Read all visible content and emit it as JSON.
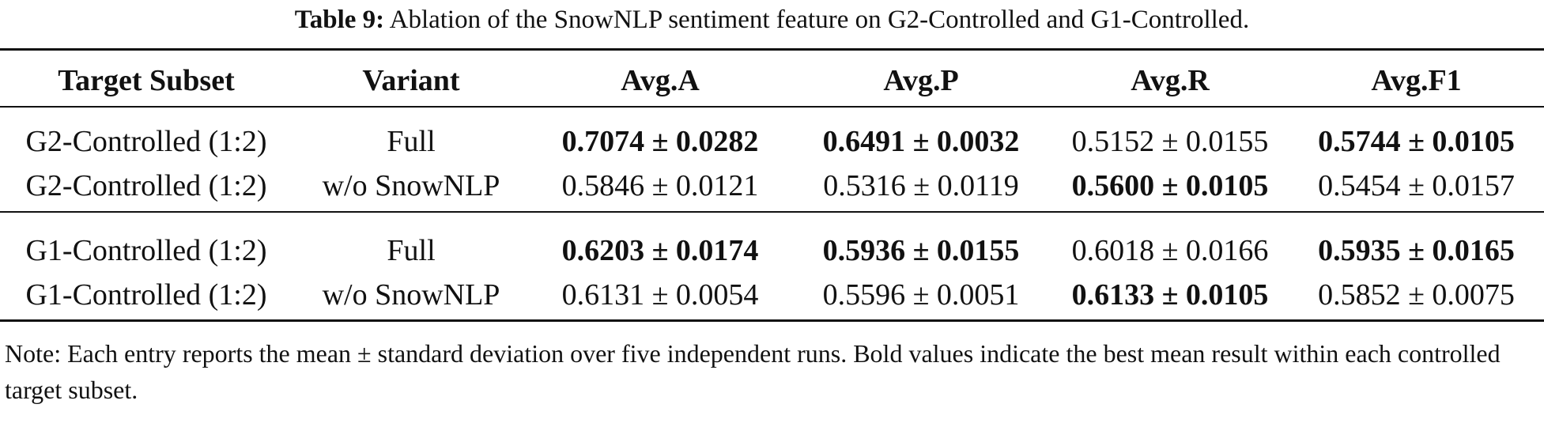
{
  "caption": {
    "label": "Table 9:",
    "text": "Ablation of the SnowNLP sentiment feature on G2-Controlled and G1-Controlled."
  },
  "table": {
    "headers": [
      "Target Subset",
      "Variant",
      "Avg.A",
      "Avg.P",
      "Avg.R",
      "Avg.F1"
    ],
    "groups": [
      {
        "rows": [
          {
            "cells": [
              "G2-Controlled (1:2)",
              "Full",
              "0.7074 ± 0.0282",
              "0.6491 ± 0.0032",
              "0.5152 ± 0.0155",
              "0.5744 ± 0.0105"
            ],
            "bold": [
              false,
              false,
              true,
              true,
              false,
              true
            ]
          },
          {
            "cells": [
              "G2-Controlled (1:2)",
              "w/o SnowNLP",
              "0.5846 ± 0.0121",
              "0.5316 ± 0.0119",
              "0.5600 ± 0.0105",
              "0.5454 ± 0.0157"
            ],
            "bold": [
              false,
              false,
              false,
              false,
              true,
              false
            ]
          }
        ]
      },
      {
        "rows": [
          {
            "cells": [
              "G1-Controlled (1:2)",
              "Full",
              "0.6203 ± 0.0174",
              "0.5936 ± 0.0155",
              "0.6018 ± 0.0166",
              "0.5935 ± 0.0165"
            ],
            "bold": [
              false,
              false,
              true,
              true,
              false,
              true
            ]
          },
          {
            "cells": [
              "G1-Controlled (1:2)",
              "w/o SnowNLP",
              "0.6131 ± 0.0054",
              "0.5596 ± 0.0051",
              "0.6133 ± 0.0105",
              "0.5852 ± 0.0075"
            ],
            "bold": [
              false,
              false,
              false,
              false,
              true,
              false
            ]
          }
        ]
      }
    ]
  },
  "note": "Note: Each entry reports the mean ± standard deviation over five independent runs. Bold values indicate the best mean result within each controlled target subset."
}
